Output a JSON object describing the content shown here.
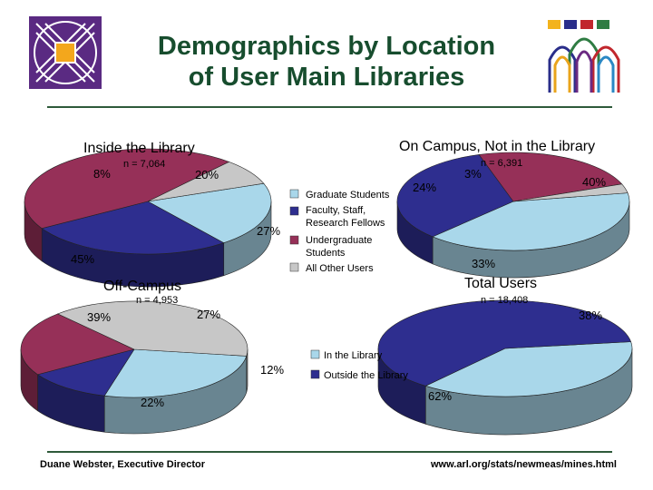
{
  "slide": {
    "title_line1": "Demographics by Location",
    "title_line2": "of User Main Libraries",
    "footer_left": "Duane Webster, Executive Director",
    "footer_right": "www.arl.org/stats/newmeas/mines.html"
  },
  "colors": {
    "graduate": "#a9d7ea",
    "faculty": "#2e2e8f",
    "undergrad": "#963058",
    "other": "#c7c7c7",
    "in_library": "#a9d7ea",
    "outside_library": "#2e2e8f",
    "title": "#174d2e",
    "logo_purple": "#5a2a82"
  },
  "legend_main": {
    "items": [
      {
        "label": "Graduate Students",
        "color": "#a9d7ea"
      },
      {
        "label": "Faculty, Staff, Research Fellows",
        "color": "#2e2e8f"
      },
      {
        "label": "Undergraduate Students",
        "color": "#963058"
      },
      {
        "label": "All Other Users",
        "color": "#c7c7c7"
      }
    ]
  },
  "legend_total": {
    "items": [
      {
        "label": "In the Library",
        "color": "#a9d7ea"
      },
      {
        "label": "Outside the Library",
        "color": "#2e2e8f"
      }
    ]
  },
  "chart_data": [
    {
      "type": "pie",
      "title": "Inside the Library",
      "note": "n = 7,064",
      "slices": [
        {
          "name": "Graduate Students",
          "value": 20
        },
        {
          "name": "Faculty, Staff, Research Fellows",
          "value": 27
        },
        {
          "name": "Undergraduate Students",
          "value": 45
        },
        {
          "name": "All Other Users",
          "value": 8
        }
      ]
    },
    {
      "type": "pie",
      "title": "On Campus, Not in the Library",
      "note": "n = 6,391",
      "slices": [
        {
          "name": "Graduate Students",
          "value": 40
        },
        {
          "name": "Faculty, Staff, Research Fellows",
          "value": 33
        },
        {
          "name": "Undergraduate Students",
          "value": 24
        },
        {
          "name": "All Other Users",
          "value": 3
        }
      ]
    },
    {
      "type": "pie",
      "title": "Off-Campus",
      "note": "n = 4,953",
      "slices": [
        {
          "name": "Graduate Students",
          "value": 27
        },
        {
          "name": "Faculty, Staff, Research Fellows",
          "value": 12
        },
        {
          "name": "Undergraduate Students",
          "value": 22
        },
        {
          "name": "All Other Users",
          "value": 39
        }
      ]
    },
    {
      "type": "pie",
      "title": "Total Users",
      "note": "n = 18,408",
      "slices": [
        {
          "name": "In the Library",
          "value": 38
        },
        {
          "name": "Outside the Library",
          "value": 62
        }
      ]
    }
  ]
}
